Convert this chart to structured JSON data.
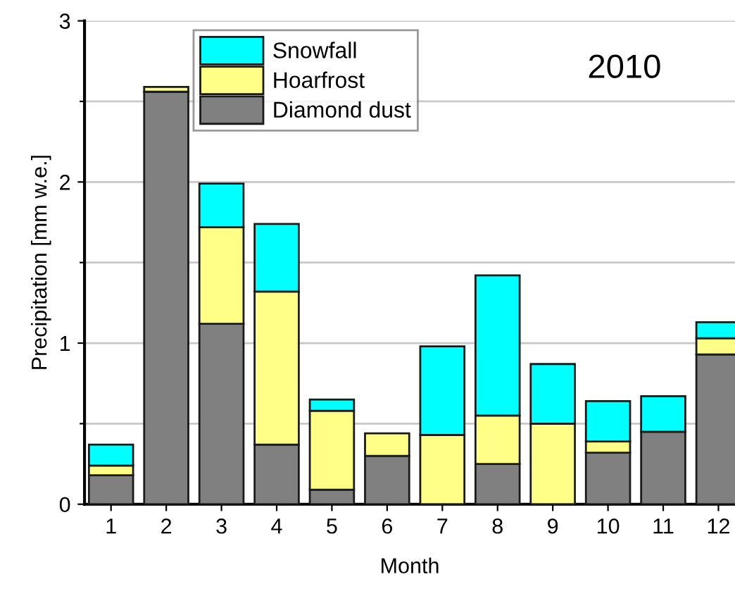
{
  "chart_data": {
    "type": "bar",
    "stacked": true,
    "categories": [
      "1",
      "2",
      "3",
      "4",
      "5",
      "6",
      "7",
      "8",
      "9",
      "10",
      "11",
      "12"
    ],
    "series": [
      {
        "name": "Diamond dust",
        "color": "#808080",
        "values": [
          0.18,
          2.56,
          1.12,
          0.37,
          0.09,
          0.3,
          0,
          0.25,
          0,
          0.32,
          0.45,
          0.93
        ]
      },
      {
        "name": "Hoarfrost",
        "color": "#ffff88",
        "values": [
          0.06,
          0.03,
          0.6,
          0.95,
          0.49,
          0.14,
          0.43,
          0.3,
          0.5,
          0.07,
          0,
          0.1
        ]
      },
      {
        "name": "Snowfall",
        "color": "#00ffff",
        "values": [
          0.13,
          0,
          0.27,
          0.42,
          0.07,
          0,
          0.55,
          0.87,
          0.37,
          0.25,
          0.22,
          0.1
        ]
      }
    ],
    "xlabel": "Month",
    "ylabel": "Precipitation [mm w.e.]",
    "ylim": [
      0,
      3
    ],
    "yticks": [
      0,
      {
        "value": 0.5,
        "label": null
      },
      1,
      {
        "value": 1.5,
        "label": null
      },
      2,
      {
        "value": 2.5,
        "label": null
      },
      3
    ],
    "grid": "y",
    "legend": "top",
    "annotations": [
      "2010"
    ]
  }
}
